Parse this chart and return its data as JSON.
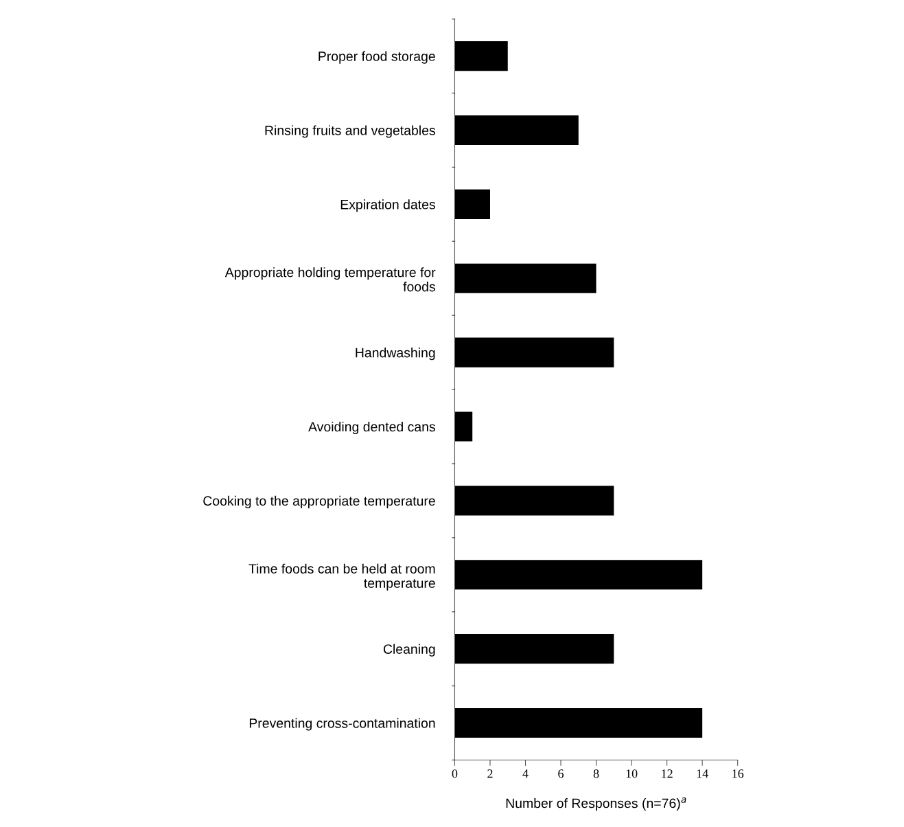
{
  "chart_data": {
    "type": "bar",
    "orientation": "horizontal",
    "categories": [
      "Proper food storage",
      "Rinsing fruits and vegetables",
      "Expiration dates",
      "Appropriate holding temperature for\nfoods",
      "Handwashing",
      "Avoiding dented cans",
      "Cooking to the appropriate temperature",
      "Time foods can be held at room\ntemperature",
      "Cleaning",
      "Preventing cross-contamination"
    ],
    "values": [
      3,
      7,
      2,
      8,
      9,
      1,
      9,
      14,
      9,
      14
    ],
    "color": "#000000",
    "xlabel": "Number of Responses (n=76)$^{a}$",
    "xlim": [
      0,
      16
    ],
    "xticks": [
      0,
      2,
      4,
      6,
      8,
      10,
      12,
      14,
      16
    ],
    "grid": false,
    "legend": false
  }
}
